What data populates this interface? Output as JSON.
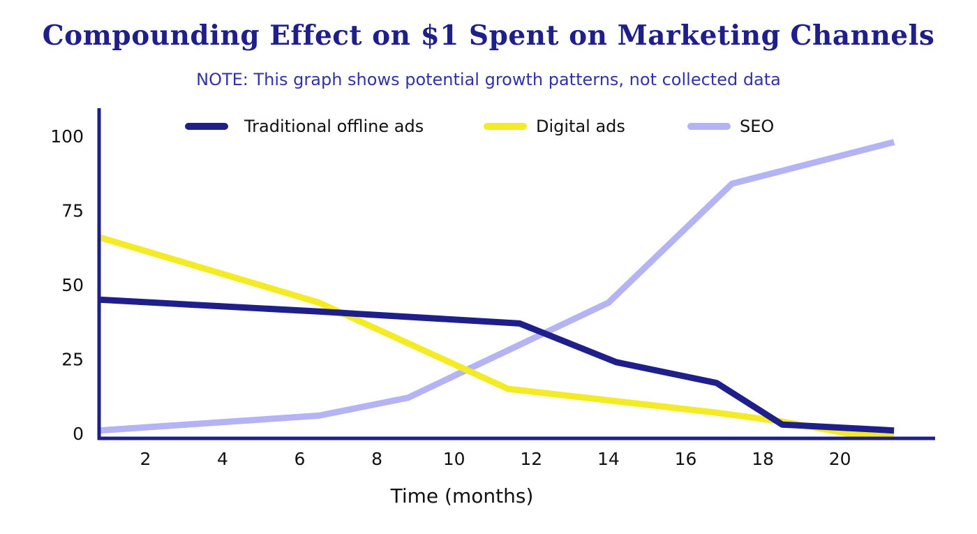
{
  "chart_data": {
    "type": "line",
    "title": "Compounding Effect on $1 Spent on Marketing Channels",
    "subtitle": "NOTE: This graph shows potential growth patterns, not collected data",
    "xlabel": "Time (months)",
    "ylabel": "",
    "xlim": [
      0.8,
      22.0
    ],
    "ylim": [
      0,
      100
    ],
    "x_ticks": [
      2,
      4,
      6,
      8,
      10,
      12,
      14,
      16,
      18,
      20
    ],
    "y_ticks": [
      0,
      25,
      50,
      75,
      100
    ],
    "grid": false,
    "legend_position": "top",
    "series": [
      {
        "name": "Traditional offline ads",
        "color": "#1f1f8c",
        "points": [
          [
            0.8,
            45
          ],
          [
            6.5,
            41
          ],
          [
            11.7,
            37
          ],
          [
            14.2,
            24
          ],
          [
            16.8,
            17
          ],
          [
            18.5,
            3
          ],
          [
            21.4,
            1
          ]
        ]
      },
      {
        "name": "Digital ads",
        "color": "#f5eb25",
        "points": [
          [
            0.8,
            66
          ],
          [
            6.5,
            44
          ],
          [
            11.4,
            15
          ],
          [
            16.8,
            7
          ],
          [
            18.5,
            4
          ],
          [
            20.2,
            0
          ],
          [
            21.4,
            0
          ]
        ]
      },
      {
        "name": "SEO",
        "color": "#b3b3f5",
        "points": [
          [
            0.8,
            1
          ],
          [
            6.5,
            6
          ],
          [
            8.8,
            12
          ],
          [
            14.0,
            44
          ],
          [
            17.2,
            84
          ],
          [
            21.4,
            98
          ]
        ]
      }
    ]
  }
}
